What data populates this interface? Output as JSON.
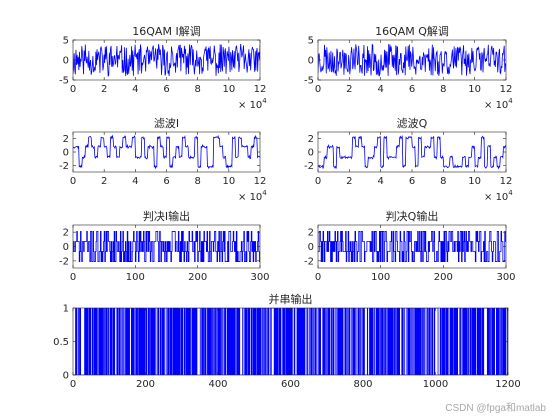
{
  "colors": {
    "signal": "#0000ff",
    "axis": "#262626",
    "background": "#ffffff"
  },
  "watermark": "CSDN @fpga和matlab",
  "chart_data": [
    {
      "type": "line",
      "title": "16QAM I解调",
      "xlim": [
        0,
        120000
      ],
      "ylim": [
        -5,
        5
      ],
      "xticks": [
        0,
        20000,
        40000,
        60000,
        80000,
        100000,
        120000
      ],
      "xtick_labels": [
        "0",
        "2",
        "4",
        "6",
        "8",
        "10",
        "12"
      ],
      "yticks": [
        -5,
        0,
        5
      ],
      "ytick_labels": [
        "-5",
        "0",
        "5"
      ],
      "x_exponent": "10",
      "x_exponent_power": "4",
      "signal": {
        "kind": "noisy",
        "n": 320,
        "levels": [
          -3,
          -1,
          1,
          3
        ],
        "noise": 1.0,
        "clip": 4.7,
        "seed": 11
      },
      "grid": false
    },
    {
      "type": "line",
      "title": "16QAM Q解调",
      "xlim": [
        0,
        120000
      ],
      "ylim": [
        -5,
        5
      ],
      "xticks": [
        0,
        20000,
        40000,
        60000,
        80000,
        100000,
        120000
      ],
      "xtick_labels": [
        "0",
        "2",
        "4",
        "6",
        "8",
        "10",
        "12"
      ],
      "yticks": [
        -5,
        0,
        5
      ],
      "ytick_labels": [
        "-5",
        "0",
        "5"
      ],
      "x_exponent": "10",
      "x_exponent_power": "4",
      "signal": {
        "kind": "noisy",
        "n": 320,
        "levels": [
          -3,
          -1,
          1,
          3
        ],
        "noise": 1.0,
        "clip": 4.7,
        "seed": 23
      },
      "grid": false
    },
    {
      "type": "line",
      "title": "滤波I",
      "xlim": [
        0,
        120000
      ],
      "ylim": [
        -3,
        3
      ],
      "xticks": [
        0,
        20000,
        40000,
        60000,
        80000,
        100000,
        120000
      ],
      "xtick_labels": [
        "0",
        "2",
        "4",
        "6",
        "8",
        "10",
        "12"
      ],
      "yticks": [
        -2,
        0,
        2
      ],
      "ytick_labels": [
        "-2",
        "0",
        "2"
      ],
      "x_exponent": "10",
      "x_exponent_power": "4",
      "signal": {
        "kind": "filtered",
        "n": 300,
        "levels": [
          -2.2,
          -0.8,
          0.8,
          2.2
        ],
        "seed": 37
      },
      "grid": false
    },
    {
      "type": "line",
      "title": "滤波Q",
      "xlim": [
        0,
        120000
      ],
      "ylim": [
        -3,
        3
      ],
      "xticks": [
        0,
        20000,
        40000,
        60000,
        80000,
        100000,
        120000
      ],
      "xtick_labels": [
        "0",
        "2",
        "4",
        "6",
        "8",
        "10",
        "12"
      ],
      "yticks": [
        -2,
        0,
        2
      ],
      "ytick_labels": [
        "-2",
        "0",
        "2"
      ],
      "x_exponent": "10",
      "x_exponent_power": "4",
      "signal": {
        "kind": "filtered",
        "n": 300,
        "levels": [
          -2.2,
          -0.8,
          0.8,
          2.2
        ],
        "seed": 53
      },
      "grid": false
    },
    {
      "type": "line",
      "title": "判决I输出",
      "xlim": [
        0,
        300
      ],
      "ylim": [
        -3,
        3
      ],
      "xticks": [
        0,
        100,
        200,
        300
      ],
      "xtick_labels": [
        "0",
        "100",
        "200",
        "300"
      ],
      "yticks": [
        -2,
        0,
        2
      ],
      "ytick_labels": [
        "-2",
        "0",
        "2"
      ],
      "signal": {
        "kind": "stairs",
        "n": 300,
        "levels": [
          -3,
          -1,
          1,
          3
        ],
        "plot_scale": 0.7,
        "seed": 71
      },
      "grid": false
    },
    {
      "type": "line",
      "title": "判决Q输出",
      "xlim": [
        0,
        300
      ],
      "ylim": [
        -3,
        3
      ],
      "xticks": [
        0,
        100,
        200,
        300
      ],
      "xtick_labels": [
        "0",
        "100",
        "200",
        "300"
      ],
      "yticks": [
        -2,
        0,
        2
      ],
      "ytick_labels": [
        "-2",
        "0",
        "2"
      ],
      "signal": {
        "kind": "stairs",
        "n": 300,
        "levels": [
          -3,
          -1,
          1,
          3
        ],
        "plot_scale": 0.7,
        "seed": 89
      },
      "grid": false
    },
    {
      "type": "line",
      "title": "并串输出",
      "xlim": [
        0,
        1200
      ],
      "ylim": [
        0,
        1
      ],
      "xticks": [
        0,
        200,
        400,
        600,
        800,
        1000,
        1200
      ],
      "xtick_labels": [
        "0",
        "200",
        "400",
        "600",
        "800",
        "1000",
        "1200"
      ],
      "yticks": [
        0,
        0.5,
        1
      ],
      "ytick_labels": [
        "0",
        "0.5",
        "1"
      ],
      "signal": {
        "kind": "bits",
        "n": 1200,
        "levels": [
          0,
          1
        ],
        "seed": 97
      },
      "grid": false
    }
  ]
}
